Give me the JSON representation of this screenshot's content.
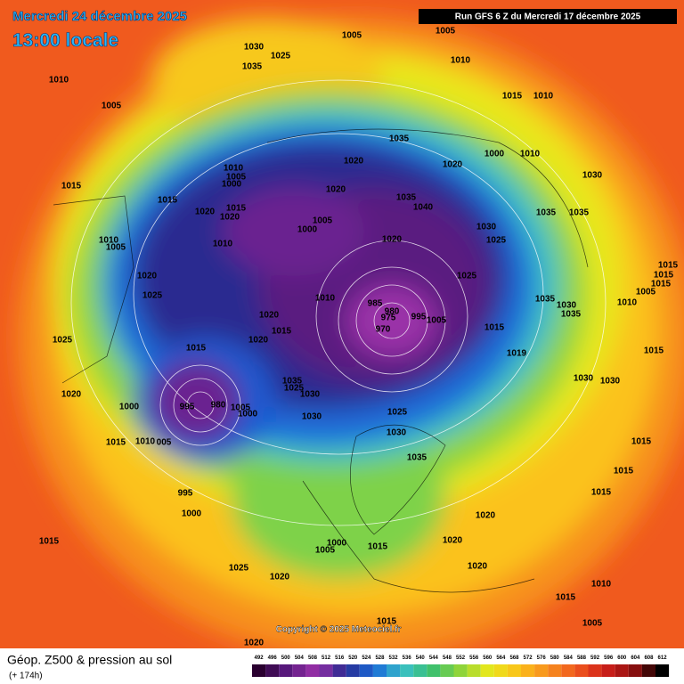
{
  "header": {
    "valid_date": "Mercredi 24 décembre 2025",
    "local_time": "13:00 locale",
    "run": "Run GFS 6 Z du Mercredi 17 décembre 2025"
  },
  "copyright": "Copyright © 2025 Meteociel.fr",
  "footer": {
    "title": "Géop. Z500 & pression au sol",
    "lead": "(+ 174h)"
  },
  "legend": {
    "values": [
      492,
      496,
      500,
      504,
      508,
      512,
      516,
      520,
      524,
      528,
      532,
      536,
      540,
      544,
      548,
      552,
      556,
      560,
      564,
      568,
      572,
      576,
      580,
      584,
      588,
      592,
      596,
      600,
      604,
      608,
      612
    ]
  },
  "isobar_labels": [
    "1005",
    "1005",
    "1030",
    "1025",
    "1035",
    "1010",
    "1010",
    "1005",
    "1015",
    "1010",
    "1035",
    "1020",
    "1020",
    "1000",
    "1010",
    "1010",
    "1005",
    "1000",
    "1015",
    "1030",
    "1020",
    "1015",
    "1035",
    "1040",
    "1020",
    "1015",
    "1020",
    "1035",
    "1035",
    "1005",
    "1000",
    "1030",
    "1025",
    "1010",
    "1005",
    "1010",
    "1020",
    "1015",
    "1015",
    "1015",
    "1020",
    "1025",
    "1005",
    "1025",
    "1010",
    "1035",
    "1030",
    "1010",
    "985",
    "1020",
    "1035",
    "980",
    "975",
    "995",
    "1005",
    "970",
    "1015",
    "1015",
    "1025",
    "1020",
    "1015",
    "1019",
    "1015",
    "1030",
    "1030",
    "1035",
    "1025",
    "1030",
    "1020",
    "1000",
    "995",
    "980",
    "1005",
    "1000",
    "1030",
    "1025",
    "1030",
    "1015",
    "1010",
    "005",
    "1035",
    "1015",
    "1015",
    "995",
    "1000",
    "1015",
    "1020",
    "1015",
    "1000",
    "1005",
    "1015",
    "1020",
    "1025",
    "1020",
    "1020",
    "1010",
    "1015",
    "1005",
    "1015",
    "1020"
  ]
}
